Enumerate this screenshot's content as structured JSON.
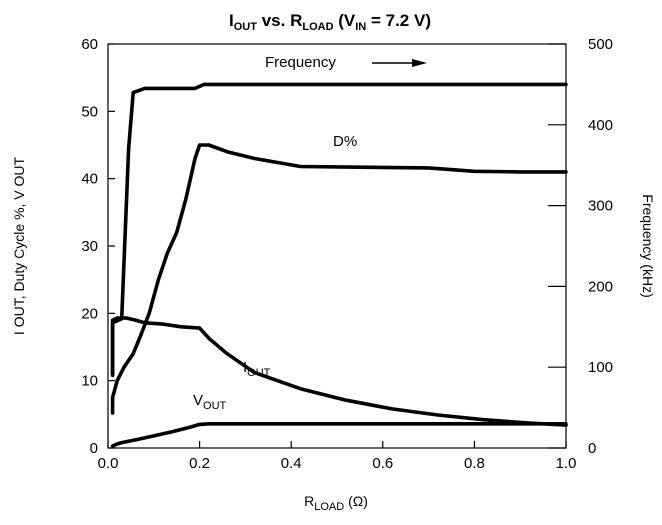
{
  "chart_data": {
    "type": "line",
    "title": {
      "main": "I",
      "sub1": "OUT",
      "mid": " vs. R",
      "sub2": "LOAD",
      "mid2": " (V",
      "sub3": "IN",
      "tail": " = 7.2 V)"
    },
    "xlabel": {
      "main": "R",
      "sub": "LOAD",
      "tail": " (Ω)"
    },
    "ylabel_left": "I OUT, Duty Cycle %, V OUT",
    "ylabel_right": "Frequency  (kHz)",
    "xlim": [
      0,
      1.0
    ],
    "ylim_left": [
      0,
      60
    ],
    "ylim_right": [
      0,
      500
    ],
    "x_ticks": [
      "0.0",
      "0.2",
      "0.4",
      "0.6",
      "0.8",
      "1.0"
    ],
    "y_left_ticks": [
      "0",
      "10",
      "20",
      "30",
      "40",
      "50",
      "60"
    ],
    "y_right_ticks": [
      "0",
      "100",
      "200",
      "300",
      "400",
      "500"
    ],
    "grid": false,
    "series": [
      {
        "name": "Frequency",
        "axis": "right",
        "label": {
          "main": "Frequency",
          "sub": ""
        },
        "x": [
          0.01,
          0.01,
          0.03,
          0.045,
          0.055,
          0.065,
          0.08,
          0.19,
          0.21,
          0.3,
          0.5,
          0.7,
          0.9,
          1.0
        ],
        "y": [
          90,
          155,
          160,
          370,
          440,
          442,
          445,
          445,
          450,
          450,
          450,
          450,
          450,
          450
        ]
      },
      {
        "name": "D%",
        "axis": "left",
        "label": {
          "main": "D%",
          "sub": ""
        },
        "x": [
          0.01,
          0.01,
          0.02,
          0.035,
          0.055,
          0.07,
          0.09,
          0.11,
          0.13,
          0.15,
          0.17,
          0.19,
          0.2,
          0.22,
          0.26,
          0.32,
          0.42,
          0.55,
          0.7,
          0.8,
          0.9,
          1.0
        ],
        "y": [
          5.2,
          7.5,
          10,
          12,
          14,
          16.5,
          20,
          25,
          29,
          32,
          37,
          43,
          45,
          45,
          44,
          43,
          41.8,
          41.7,
          41.6,
          41.1,
          41,
          41
        ]
      },
      {
        "name": "IOUT",
        "axis": "left",
        "label": {
          "main": "I",
          "sub": "OUT"
        },
        "x": [
          0.01,
          0.01,
          0.02,
          0.04,
          0.06,
          0.08,
          0.12,
          0.16,
          0.2,
          0.22,
          0.26,
          0.32,
          0.42,
          0.52,
          0.62,
          0.72,
          0.82,
          0.92,
          1.0
        ],
        "y": [
          11,
          19,
          19.3,
          19.3,
          19,
          18.6,
          18.4,
          18,
          17.8,
          16.3,
          14,
          11.2,
          8.8,
          7.1,
          5.8,
          4.9,
          4.2,
          3.7,
          3.4
        ]
      },
      {
        "name": "VOUT",
        "axis": "left",
        "label": {
          "main": "V",
          "sub": "OUT"
        },
        "x": [
          0.01,
          0.02,
          0.03,
          0.06,
          0.1,
          0.14,
          0.18,
          0.2,
          0.22,
          0.4,
          0.6,
          0.8,
          1.0
        ],
        "y": [
          0.3,
          0.6,
          0.8,
          1.2,
          1.8,
          2.4,
          3.1,
          3.5,
          3.6,
          3.6,
          3.6,
          3.6,
          3.6
        ]
      }
    ]
  }
}
